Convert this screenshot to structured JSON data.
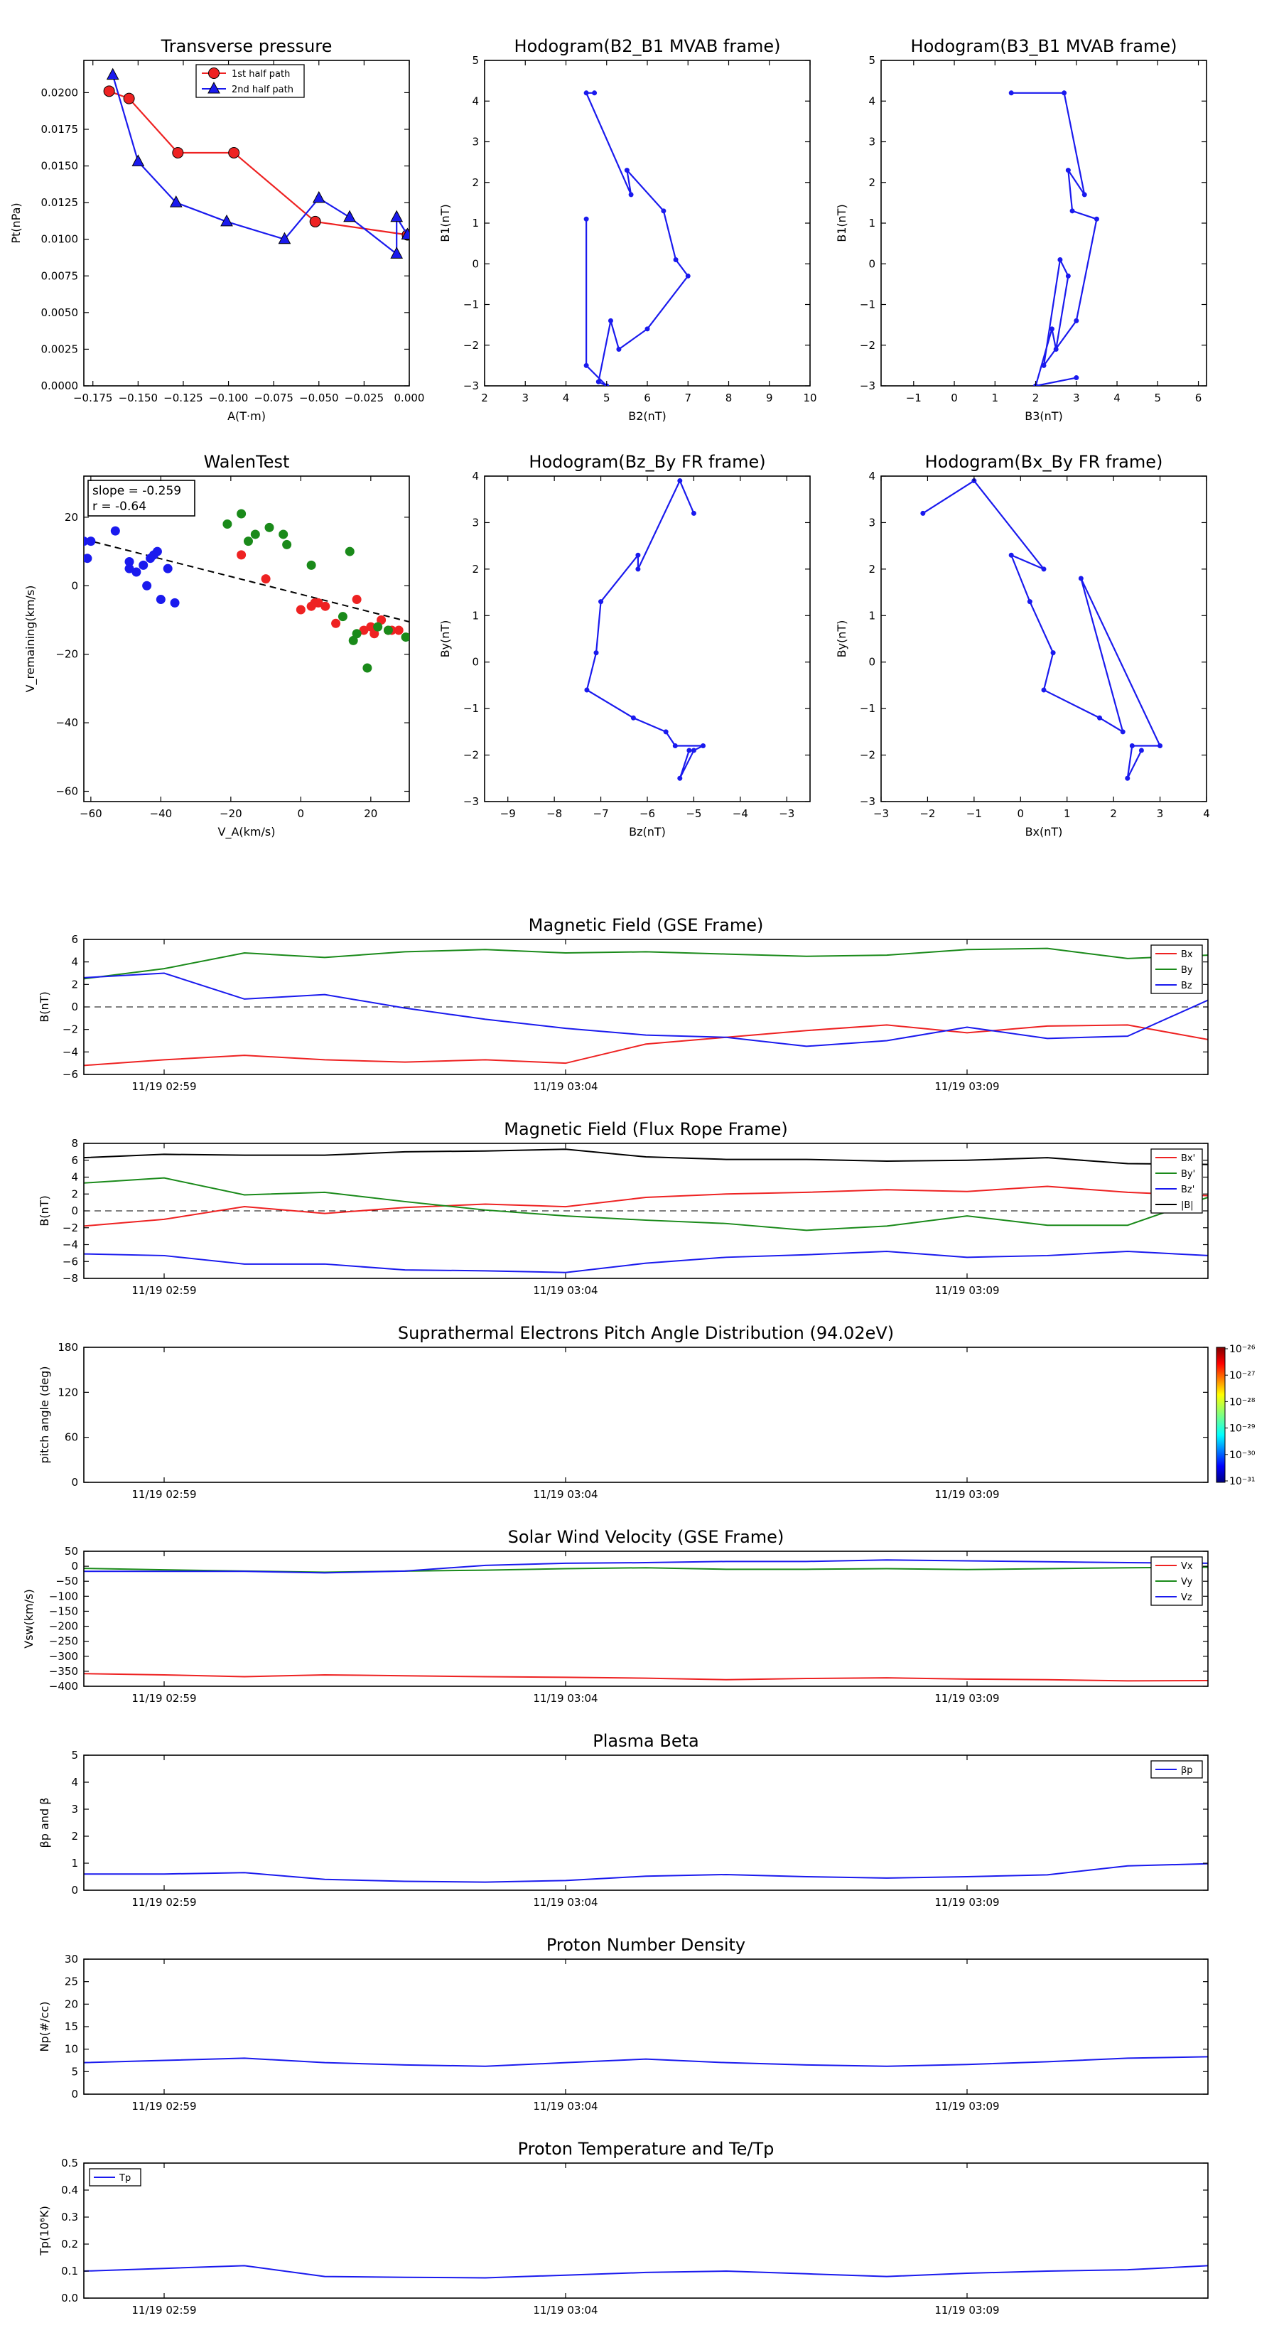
{
  "colors": {
    "red": "#ee2222",
    "green": "#1a8a1a",
    "blue": "#1a1aee",
    "black": "#000000",
    "navy": "#00008b",
    "darkred": "#8b0000"
  },
  "chart_data": [
    {
      "id": "pt",
      "type": "line",
      "title": "Transverse pressure",
      "xlabel": "A(T·m)",
      "ylabel": "Pt(nPa)",
      "xlim": [
        -0.18,
        0.0
      ],
      "ylim": [
        0,
        0.0222
      ],
      "xticks": [
        -0.175,
        -0.15,
        -0.125,
        -0.1,
        -0.075,
        -0.05,
        -0.025,
        0.0
      ],
      "xtick_labels": [
        "−0.175",
        "−0.150",
        "−0.125",
        "−0.100",
        "−0.075",
        "−0.050",
        "−0.025",
        "0.000"
      ],
      "yticks": [
        0,
        0.0025,
        0.005,
        0.0075,
        0.01,
        0.0125,
        0.015,
        0.0175,
        0.02
      ],
      "ytick_labels": [
        "0.0000",
        "0.0025",
        "0.0050",
        "0.0075",
        "0.0100",
        "0.0125",
        "0.0150",
        "0.0175",
        "0.0200"
      ],
      "legend": [
        "1st half path",
        "2nd half path"
      ],
      "legend_position": "top-center",
      "series": [
        {
          "name": "1st half path",
          "color": "red",
          "marker": "circle",
          "x": [
            -0.166,
            -0.155,
            -0.128,
            -0.097,
            -0.052,
            -0.001
          ],
          "y": [
            0.0201,
            0.0196,
            0.0159,
            0.0159,
            0.0112,
            0.0103
          ]
        },
        {
          "name": "2nd half path",
          "color": "blue",
          "marker": "triangle",
          "x": [
            -0.164,
            -0.15,
            -0.129,
            -0.101,
            -0.069,
            -0.05,
            -0.033,
            -0.007,
            -0.007,
            -0.001
          ],
          "y": [
            0.0212,
            0.0153,
            0.0125,
            0.0112,
            0.01,
            0.0128,
            0.0115,
            0.009,
            0.0115,
            0.0103
          ]
        }
      ]
    },
    {
      "id": "h1",
      "type": "line",
      "title": "Hodogram(B2_B1 MVAB frame)",
      "xlabel": "B2(nT)",
      "ylabel": "B1(nT)",
      "xlim": [
        2,
        10
      ],
      "ylim": [
        -3,
        5
      ],
      "xticks": [
        2,
        3,
        4,
        5,
        6,
        7,
        8,
        9,
        10
      ],
      "yticks": [
        -3,
        -2,
        -1,
        0,
        1,
        2,
        3,
        4,
        5
      ],
      "series": [
        {
          "color": "blue",
          "marker": "dot",
          "x": [
            4.7,
            4.5,
            5.6,
            5.5,
            6.4,
            6.7,
            7.0,
            6.0,
            5.3,
            5.1,
            4.8,
            5.0,
            4.5,
            4.5
          ],
          "y": [
            4.2,
            4.2,
            1.7,
            2.3,
            1.3,
            0.1,
            -0.3,
            -1.6,
            -2.1,
            -1.4,
            -2.9,
            -3.0,
            -2.5,
            1.1
          ]
        }
      ]
    },
    {
      "id": "h2",
      "type": "line",
      "title": "Hodogram(B3_B1 MVAB frame)",
      "xlabel": "B3(nT)",
      "ylabel": "B1(nT)",
      "xlim": [
        -1.8,
        6.2
      ],
      "ylim": [
        -3,
        5
      ],
      "xticks": [
        -1,
        0,
        1,
        2,
        3,
        4,
        5,
        6
      ],
      "yticks": [
        -3,
        -2,
        -1,
        0,
        1,
        2,
        3,
        4,
        5
      ],
      "series": [
        {
          "color": "blue",
          "marker": "dot",
          "x": [
            1.4,
            2.7,
            3.2,
            2.8,
            2.9,
            3.5,
            3.0,
            2.2,
            2.6,
            2.8,
            2.5,
            2.4,
            2.0,
            3.0
          ],
          "y": [
            4.2,
            4.2,
            1.7,
            2.3,
            1.3,
            1.1,
            -1.4,
            -2.5,
            0.1,
            -0.3,
            -2.1,
            -1.6,
            -3.0,
            -2.8
          ]
        }
      ]
    },
    {
      "id": "walen",
      "type": "scatter",
      "title": "WalenTest",
      "xlabel": "V_A(km/s)",
      "ylabel": "V_remaining(km/s)",
      "xlim": [
        -62,
        31
      ],
      "ylim": [
        -63,
        32
      ],
      "xticks": [
        -60,
        -40,
        -20,
        0,
        20
      ],
      "yticks": [
        -60,
        -40,
        -20,
        0,
        20
      ],
      "annotation": [
        "slope = -0.259",
        "r = -0.64"
      ],
      "fit": {
        "slope": -0.259,
        "intercept": -2.5
      },
      "series": [
        {
          "name": "blue",
          "color": "blue",
          "x": [
            -62,
            -61,
            -60,
            -53,
            -49,
            -49,
            -47,
            -45,
            -44,
            -43,
            -42,
            -41,
            -40,
            -38,
            -36
          ],
          "y": [
            13,
            8,
            13,
            16,
            7,
            5,
            4,
            6,
            0,
            8,
            9,
            10,
            -4,
            5,
            -5
          ]
        },
        {
          "name": "red",
          "color": "red",
          "x": [
            -10,
            -17,
            0,
            3,
            4,
            5,
            7,
            10,
            16,
            18,
            20,
            21,
            23,
            25,
            26,
            28
          ],
          "y": [
            2,
            9,
            -7,
            -6,
            -5,
            -5,
            -6,
            -11,
            -4,
            -13,
            -12,
            -14,
            -10,
            -13,
            -13,
            -13
          ]
        },
        {
          "name": "green",
          "color": "green",
          "x": [
            -21,
            -17,
            -15,
            -13,
            -9,
            -5,
            -4,
            3,
            12,
            14,
            15,
            16,
            19,
            22,
            25,
            30
          ],
          "y": [
            18,
            21,
            13,
            15,
            17,
            15,
            12,
            6,
            -9,
            10,
            -16,
            -14,
            -24,
            -12,
            -13,
            -15
          ]
        }
      ]
    },
    {
      "id": "h3",
      "type": "line",
      "title": "Hodogram(Bz_By FR frame)",
      "xlabel": "Bz(nT)",
      "ylabel": "By(nT)",
      "xlim": [
        -9.5,
        -2.5
      ],
      "ylim": [
        -3,
        4
      ],
      "xticks": [
        -9,
        -8,
        -7,
        -6,
        -5,
        -4,
        -3
      ],
      "yticks": [
        -3,
        -2,
        -1,
        0,
        1,
        2,
        3,
        4
      ],
      "series": [
        {
          "color": "blue",
          "marker": "dot",
          "x": [
            -5,
            -5.3,
            -6.2,
            -6.2,
            -7.0,
            -7.1,
            -7.3,
            -6.3,
            -5.6,
            -5.4,
            -4.8,
            -5.0,
            -5.3,
            -5.1
          ],
          "y": [
            3.2,
            3.9,
            2.0,
            2.3,
            1.3,
            0.2,
            -0.6,
            -1.2,
            -1.5,
            -1.8,
            -1.8,
            -1.9,
            -2.5,
            -1.9
          ]
        }
      ]
    },
    {
      "id": "h4",
      "type": "line",
      "title": "Hodogram(Bx_By FR frame)",
      "xlabel": "Bx(nT)",
      "ylabel": "By(nT)",
      "xlim": [
        -3,
        4
      ],
      "ylim": [
        -3,
        4
      ],
      "xticks": [
        -3,
        -2,
        -1,
        0,
        1,
        2,
        3,
        4
      ],
      "yticks": [
        -3,
        -2,
        -1,
        0,
        1,
        2,
        3,
        4
      ],
      "series": [
        {
          "color": "blue",
          "marker": "dot",
          "x": [
            -2.1,
            -1.0,
            0.5,
            -0.2,
            0.2,
            0.7,
            0.5,
            1.7,
            2.2,
            1.3,
            3.0,
            2.4,
            2.3,
            2.6
          ],
          "y": [
            3.2,
            3.9,
            2.0,
            2.3,
            1.3,
            0.2,
            -0.6,
            -1.2,
            -1.5,
            1.8,
            -1.8,
            -1.8,
            -2.5,
            -1.9
          ]
        }
      ]
    },
    {
      "id": "bgse",
      "type": "timeseries",
      "title": "Magnetic Field (GSE Frame)",
      "ylabel": "B(nT)",
      "ylim": [
        -6,
        6
      ],
      "yticks": [
        -6,
        -4,
        -2,
        0,
        2,
        4,
        6
      ],
      "zero_line": true,
      "legend": [
        "Bx",
        "By",
        "Bz"
      ],
      "series": [
        {
          "name": "Bx",
          "color": "red",
          "y": [
            -5.2,
            -4.7,
            -4.3,
            -4.7,
            -4.9,
            -4.7,
            -5.0,
            -3.3,
            -2.7,
            -2.1,
            -1.6,
            -2.3,
            -1.7,
            -1.6,
            -2.9
          ]
        },
        {
          "name": "By",
          "color": "green",
          "y": [
            2.5,
            3.4,
            4.8,
            4.4,
            4.9,
            5.1,
            4.8,
            4.9,
            4.7,
            4.5,
            4.6,
            5.1,
            5.2,
            4.3,
            4.6
          ]
        },
        {
          "name": "Bz",
          "color": "blue",
          "y": [
            2.6,
            3.0,
            0.7,
            1.1,
            -0.1,
            -1.1,
            -1.9,
            -2.5,
            -2.7,
            -3.5,
            -3.0,
            -1.8,
            -2.8,
            -2.6,
            0.6
          ]
        }
      ]
    },
    {
      "id": "bfr",
      "type": "timeseries",
      "title": "Magnetic Field (Flux Rope Frame)",
      "ylabel": "B(nT)",
      "ylim": [
        -8,
        8
      ],
      "yticks": [
        -8,
        -6,
        -4,
        -2,
        0,
        2,
        4,
        6,
        8
      ],
      "zero_line": true,
      "legend": [
        "Bx'",
        "By'",
        "Bz'",
        "|B|"
      ],
      "series": [
        {
          "name": "Bx'",
          "color": "red",
          "y": [
            -1.8,
            -1.0,
            0.5,
            -0.3,
            0.4,
            0.8,
            0.5,
            1.6,
            2.0,
            2.2,
            2.5,
            2.3,
            2.9,
            2.2,
            1.8
          ]
        },
        {
          "name": "By'",
          "color": "green",
          "y": [
            3.3,
            3.9,
            1.9,
            2.2,
            1.1,
            0.1,
            -0.6,
            -1.1,
            -1.5,
            -2.3,
            -1.8,
            -0.6,
            -1.7,
            -1.7,
            1.6
          ]
        },
        {
          "name": "Bz'",
          "color": "blue",
          "y": [
            -5.1,
            -5.3,
            -6.3,
            -6.3,
            -7.0,
            -7.1,
            -7.3,
            -6.2,
            -5.5,
            -5.2,
            -4.8,
            -5.5,
            -5.3,
            -4.8,
            -5.3
          ]
        },
        {
          "name": "|B|",
          "color": "black",
          "y": [
            6.3,
            6.7,
            6.6,
            6.6,
            7.0,
            7.1,
            7.3,
            6.4,
            6.1,
            6.1,
            5.9,
            6.0,
            6.3,
            5.6,
            5.5
          ]
        }
      ]
    },
    {
      "id": "pad",
      "type": "heatmap",
      "title": "Suprathermal Electrons Pitch Angle Distribution (94.02eV)",
      "ylabel": "pitch angle (deg)",
      "ylim": [
        0,
        180
      ],
      "yticks": [
        0,
        60,
        120,
        180
      ],
      "colorbar_labels": [
        "10⁻²⁶",
        "10⁻²⁷",
        "10⁻²⁸",
        "10⁻²⁹",
        "10⁻³⁰",
        "10⁻³¹"
      ]
    },
    {
      "id": "vsw",
      "type": "timeseries",
      "title": "Solar Wind Velocity (GSE Frame)",
      "ylabel": "Vsw(km/s)",
      "ylim": [
        -400,
        50
      ],
      "yticks": [
        -400,
        -350,
        -300,
        -250,
        -200,
        -150,
        -100,
        -50,
        0,
        50
      ],
      "legend": [
        "Vx",
        "Vy",
        "Vz"
      ],
      "series": [
        {
          "name": "Vx",
          "color": "red",
          "y": [
            -358,
            -362,
            -368,
            -362,
            -365,
            -368,
            -370,
            -373,
            -378,
            -374,
            -372,
            -376,
            -378,
            -382,
            -381
          ]
        },
        {
          "name": "Vy",
          "color": "green",
          "y": [
            -7,
            -12,
            -16,
            -20,
            -16,
            -13,
            -8,
            -5,
            -10,
            -10,
            -8,
            -11,
            -8,
            -5,
            -3
          ]
        },
        {
          "name": "Vz",
          "color": "blue",
          "y": [
            -17,
            -17,
            -17,
            -22,
            -16,
            3,
            10,
            12,
            16,
            16,
            21,
            18,
            15,
            12,
            10
          ]
        }
      ]
    },
    {
      "id": "beta",
      "type": "timeseries",
      "title": "Plasma Beta",
      "ylabel": "βp and β",
      "ylim": [
        0,
        5
      ],
      "yticks": [
        0,
        1,
        2,
        3,
        4,
        5
      ],
      "legend": [
        "βp"
      ],
      "series": [
        {
          "name": "βp",
          "color": "blue",
          "y": [
            0.6,
            0.6,
            0.65,
            0.4,
            0.33,
            0.3,
            0.36,
            0.52,
            0.58,
            0.5,
            0.45,
            0.5,
            0.57,
            0.9,
            0.98
          ]
        }
      ]
    },
    {
      "id": "np",
      "type": "timeseries",
      "title": "Proton Number Density",
      "ylabel": "Np(#/cc)",
      "ylim": [
        0,
        30
      ],
      "yticks": [
        0,
        5,
        10,
        15,
        20,
        25,
        30
      ],
      "series": [
        {
          "name": "Np",
          "color": "blue",
          "y": [
            7,
            7.5,
            8,
            7,
            6.5,
            6.2,
            7,
            7.8,
            7,
            6.5,
            6.2,
            6.6,
            7.2,
            8,
            8.3
          ]
        }
      ]
    },
    {
      "id": "tp",
      "type": "timeseries",
      "title": "Proton Temperature and Te/Tp",
      "ylabel": "Tp(10⁶K)",
      "ylim": [
        0,
        0.5
      ],
      "yticks": [
        0,
        0.1,
        0.2,
        0.3,
        0.4,
        0.5
      ],
      "ytick_labels": [
        "0.0",
        "0.1",
        "0.2",
        "0.3",
        "0.4",
        "0.5"
      ],
      "legend": [
        "Tp"
      ],
      "legend_position": "top-left",
      "series": [
        {
          "name": "Tp",
          "color": "blue",
          "y": [
            0.1,
            0.11,
            0.12,
            0.08,
            0.077,
            0.075,
            0.085,
            0.095,
            0.1,
            0.09,
            0.08,
            0.092,
            0.1,
            0.105,
            0.12
          ]
        }
      ]
    }
  ],
  "time_axis": {
    "ticks": [
      "11/19 02:59",
      "11/19 03:04",
      "11/19 03:09"
    ],
    "tick_index": [
      1,
      6,
      11
    ],
    "n_points": 15
  }
}
